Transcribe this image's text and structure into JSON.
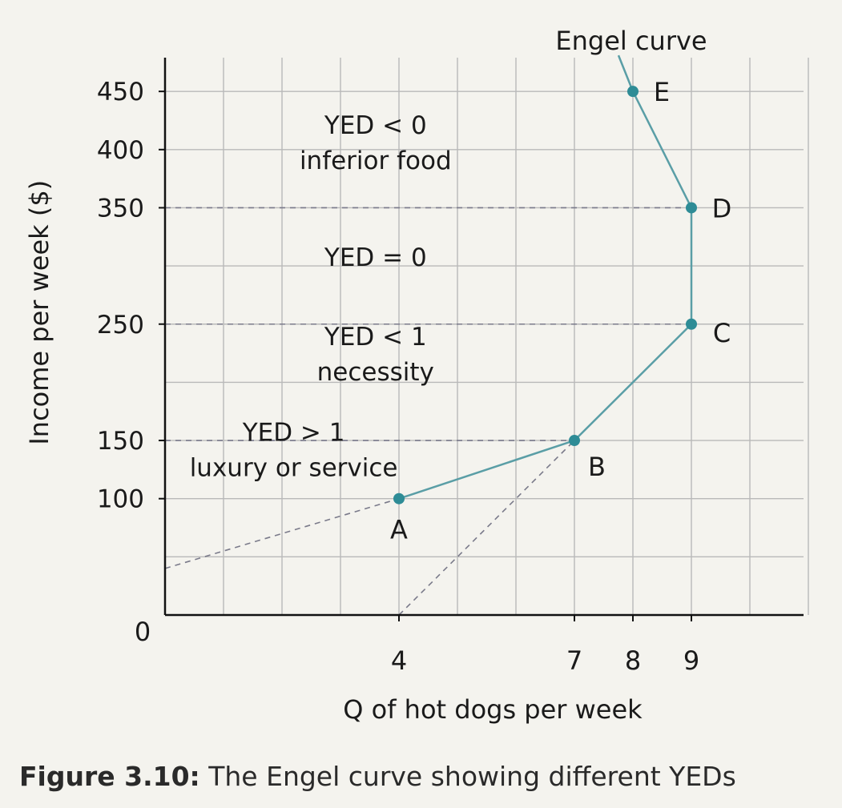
{
  "chart_data": {
    "type": "line",
    "xlabel": "Q of hot dogs per week",
    "ylabel": "Income per week ($)",
    "origin_label": "0",
    "xlim": [
      0,
      11
    ],
    "ylim": [
      0,
      450
    ],
    "grid": true,
    "x_ticks": [
      4,
      7,
      8,
      9
    ],
    "y_ticks": [
      100,
      150,
      250,
      350,
      400,
      450
    ],
    "series": [
      {
        "name": "Engel curve",
        "points": [
          {
            "label": "A",
            "x": 4,
            "y": 100
          },
          {
            "label": "B",
            "x": 7,
            "y": 150
          },
          {
            "label": "C",
            "x": 9,
            "y": 250
          },
          {
            "label": "D",
            "x": 9,
            "y": 350
          },
          {
            "label": "E",
            "x": 8,
            "y": 450
          }
        ]
      }
    ],
    "dashed_guides": {
      "horizontal_at_y": [
        150,
        250,
        350
      ],
      "rays": [
        {
          "from": [
            0,
            40
          ],
          "to": [
            4,
            100
          ]
        },
        {
          "from": [
            4,
            0
          ],
          "to": [
            7,
            150
          ]
        }
      ]
    },
    "annotations": [
      {
        "lines": [
          "YED < 0",
          "inferior food"
        ],
        "x": 3.6,
        "y": 400
      },
      {
        "lines": [
          "YED = 0"
        ],
        "x": 3.6,
        "y": 300
      },
      {
        "lines": [
          "YED < 1",
          "necessity"
        ],
        "x": 3.6,
        "y": 218
      },
      {
        "lines": [
          "YED > 1",
          "luxury or service"
        ],
        "x": 2.2,
        "y": 136
      }
    ]
  },
  "caption": {
    "figure_number": "Figure 3.10:",
    "text": " The Engel curve showing different YEDs"
  }
}
